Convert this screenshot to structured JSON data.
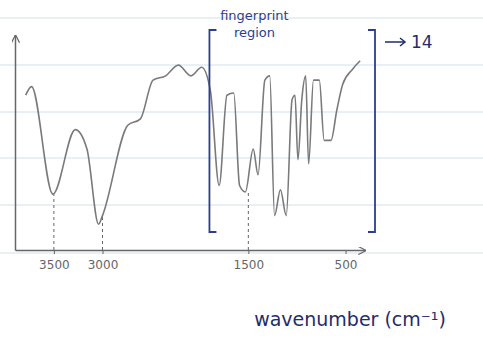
{
  "chart_data": {
    "type": "line",
    "x": [
      3790,
      3730,
      3510,
      3280,
      3160,
      3040,
      3000,
      2740,
      2610,
      2480,
      2350,
      2220,
      2090,
      1980,
      1890,
      1800,
      1720,
      1650,
      1590,
      1530,
      1450,
      1400,
      1330,
      1280,
      1230,
      1170,
      1110,
      1050,
      1020,
      990,
      950,
      910,
      880,
      830,
      770,
      720,
      650,
      590,
      530,
      430,
      350
    ],
    "values": [
      72,
      76,
      26,
      56,
      47,
      12,
      16,
      58,
      61,
      79,
      81,
      86,
      81,
      85,
      74,
      30,
      72,
      73,
      30,
      27,
      47,
      35,
      79,
      81,
      16,
      28,
      16,
      70,
      72,
      42,
      70,
      81,
      40,
      79,
      79,
      51,
      51,
      65,
      77,
      84,
      88
    ],
    "color": "#7a7a7a",
    "xlim": [
      3900,
      300
    ],
    "xticks": [
      3500,
      3000,
      1500,
      500
    ],
    "ylim": [
      0,
      100
    ],
    "yticks": [],
    "tick_labels": "x",
    "x_label": "wavenumber (cm⁻¹)",
    "guides": [
      3500,
      3000,
      1500
    ],
    "annotations": [
      {
        "text": "fingerprint region",
        "x": [
          1900,
          300
        ]
      },
      {
        "text": "14"
      }
    ]
  }
}
